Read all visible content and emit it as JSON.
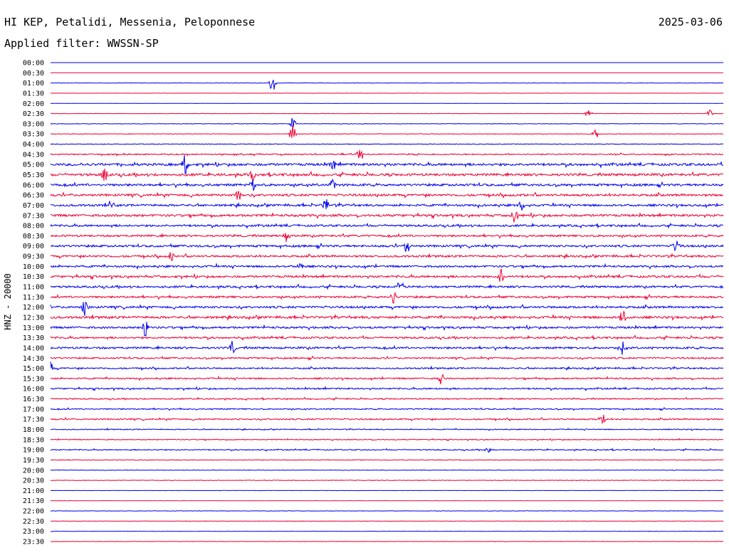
{
  "header": {
    "station": "HI KEP, Petalidi, Messenia, Peloponnese",
    "date": "2025-03-06",
    "filter": "Applied filter: WWSSN-SP"
  },
  "colors": {
    "blue": "#0000ee",
    "red": "#ee0033",
    "text": "#000000",
    "background": "#ffffff"
  },
  "chart_data": {
    "type": "line",
    "title": "HI KEP, Petalidi, Messenia, Peloponnese",
    "ylabel": "HNZ - 20000",
    "legend": "none",
    "grid": false,
    "series_colors_alternate": [
      "blue",
      "red"
    ],
    "rows": [
      {
        "time": "00:00",
        "amplitude": 0.0
      },
      {
        "time": "00:30",
        "amplitude": 0.0
      },
      {
        "time": "01:00",
        "amplitude": 0.3
      },
      {
        "time": "01:30",
        "amplitude": 0.15
      },
      {
        "time": "02:00",
        "amplitude": 0.15
      },
      {
        "time": "02:30",
        "amplitude": 0.3
      },
      {
        "time": "03:00",
        "amplitude": 0.4
      },
      {
        "time": "03:30",
        "amplitude": 0.4
      },
      {
        "time": "04:00",
        "amplitude": 0.5
      },
      {
        "time": "04:30",
        "amplitude": 0.8
      },
      {
        "time": "05:00",
        "amplitude": 1.6
      },
      {
        "time": "05:30",
        "amplitude": 1.6
      },
      {
        "time": "06:00",
        "amplitude": 1.5
      },
      {
        "time": "06:30",
        "amplitude": 1.5
      },
      {
        "time": "07:00",
        "amplitude": 1.4
      },
      {
        "time": "07:30",
        "amplitude": 1.5
      },
      {
        "time": "08:00",
        "amplitude": 1.3
      },
      {
        "time": "08:30",
        "amplitude": 1.3
      },
      {
        "time": "09:00",
        "amplitude": 1.4
      },
      {
        "time": "09:30",
        "amplitude": 1.3
      },
      {
        "time": "10:00",
        "amplitude": 1.3
      },
      {
        "time": "10:30",
        "amplitude": 1.4
      },
      {
        "time": "11:00",
        "amplitude": 1.3
      },
      {
        "time": "11:30",
        "amplitude": 1.3
      },
      {
        "time": "12:00",
        "amplitude": 1.4
      },
      {
        "time": "12:30",
        "amplitude": 1.5
      },
      {
        "time": "13:00",
        "amplitude": 1.3
      },
      {
        "time": "13:30",
        "amplitude": 1.2
      },
      {
        "time": "14:00",
        "amplitude": 1.3
      },
      {
        "time": "14:30",
        "amplitude": 1.0
      },
      {
        "time": "15:00",
        "amplitude": 1.0
      },
      {
        "time": "15:30",
        "amplitude": 1.0
      },
      {
        "time": "16:00",
        "amplitude": 1.0
      },
      {
        "time": "16:30",
        "amplitude": 0.8
      },
      {
        "time": "17:00",
        "amplitude": 0.8
      },
      {
        "time": "17:30",
        "amplitude": 0.9
      },
      {
        "time": "18:00",
        "amplitude": 0.6
      },
      {
        "time": "18:30",
        "amplitude": 0.6
      },
      {
        "time": "19:00",
        "amplitude": 0.7
      },
      {
        "time": "19:30",
        "amplitude": 0.5
      },
      {
        "time": "20:00",
        "amplitude": 0.4
      },
      {
        "time": "20:30",
        "amplitude": 0.4
      },
      {
        "time": "21:00",
        "amplitude": 0.2
      },
      {
        "time": "21:30",
        "amplitude": 0.2
      },
      {
        "time": "22:00",
        "amplitude": 0.3
      },
      {
        "time": "22:30",
        "amplitude": 0.3
      },
      {
        "time": "23:00",
        "amplitude": 0.3
      },
      {
        "time": "23:30",
        "amplitude": 0.3
      }
    ],
    "events": [
      {
        "time": "01:00",
        "pos": 0.33,
        "size": 16
      },
      {
        "time": "02:30",
        "pos": 0.8,
        "size": 8
      },
      {
        "time": "02:30",
        "pos": 0.98,
        "size": 6
      },
      {
        "time": "03:00",
        "pos": 0.36,
        "size": 10
      },
      {
        "time": "03:30",
        "pos": 0.36,
        "size": 14
      },
      {
        "time": "03:30",
        "pos": 0.81,
        "size": 8
      },
      {
        "time": "04:30",
        "pos": 0.46,
        "size": 10
      },
      {
        "time": "05:00",
        "pos": 0.2,
        "size": 18
      },
      {
        "time": "05:00",
        "pos": 0.42,
        "size": 12
      },
      {
        "time": "05:30",
        "pos": 0.08,
        "size": 12
      },
      {
        "time": "05:30",
        "pos": 0.3,
        "size": 10
      },
      {
        "time": "06:00",
        "pos": 0.3,
        "size": 12
      },
      {
        "time": "06:00",
        "pos": 0.42,
        "size": 10
      },
      {
        "time": "06:30",
        "pos": 0.28,
        "size": 12
      },
      {
        "time": "07:00",
        "pos": 0.09,
        "size": 8
      },
      {
        "time": "07:00",
        "pos": 0.41,
        "size": 12
      },
      {
        "time": "07:00",
        "pos": 0.7,
        "size": 10
      },
      {
        "time": "07:30",
        "pos": 0.69,
        "size": 12
      },
      {
        "time": "08:30",
        "pos": 0.35,
        "size": 8
      },
      {
        "time": "09:00",
        "pos": 0.53,
        "size": 12
      },
      {
        "time": "09:00",
        "pos": 0.93,
        "size": 10
      },
      {
        "time": "09:30",
        "pos": 0.18,
        "size": 8
      },
      {
        "time": "10:00",
        "pos": 0.37,
        "size": 8
      },
      {
        "time": "10:30",
        "pos": 0.67,
        "size": 12
      },
      {
        "time": "11:00",
        "pos": 0.52,
        "size": 12
      },
      {
        "time": "11:30",
        "pos": 0.51,
        "size": 10
      },
      {
        "time": "12:00",
        "pos": 0.05,
        "size": 14
      },
      {
        "time": "12:30",
        "pos": 0.85,
        "size": 14
      },
      {
        "time": "13:00",
        "pos": 0.14,
        "size": 16
      },
      {
        "time": "14:00",
        "pos": 0.27,
        "size": 10
      },
      {
        "time": "14:00",
        "pos": 0.85,
        "size": 10
      },
      {
        "time": "15:00",
        "pos": 0.0,
        "size": 10
      },
      {
        "time": "15:30",
        "pos": 0.58,
        "size": 12
      },
      {
        "time": "17:30",
        "pos": 0.82,
        "size": 12
      },
      {
        "time": "19:00",
        "pos": 0.65,
        "size": 8
      }
    ]
  }
}
